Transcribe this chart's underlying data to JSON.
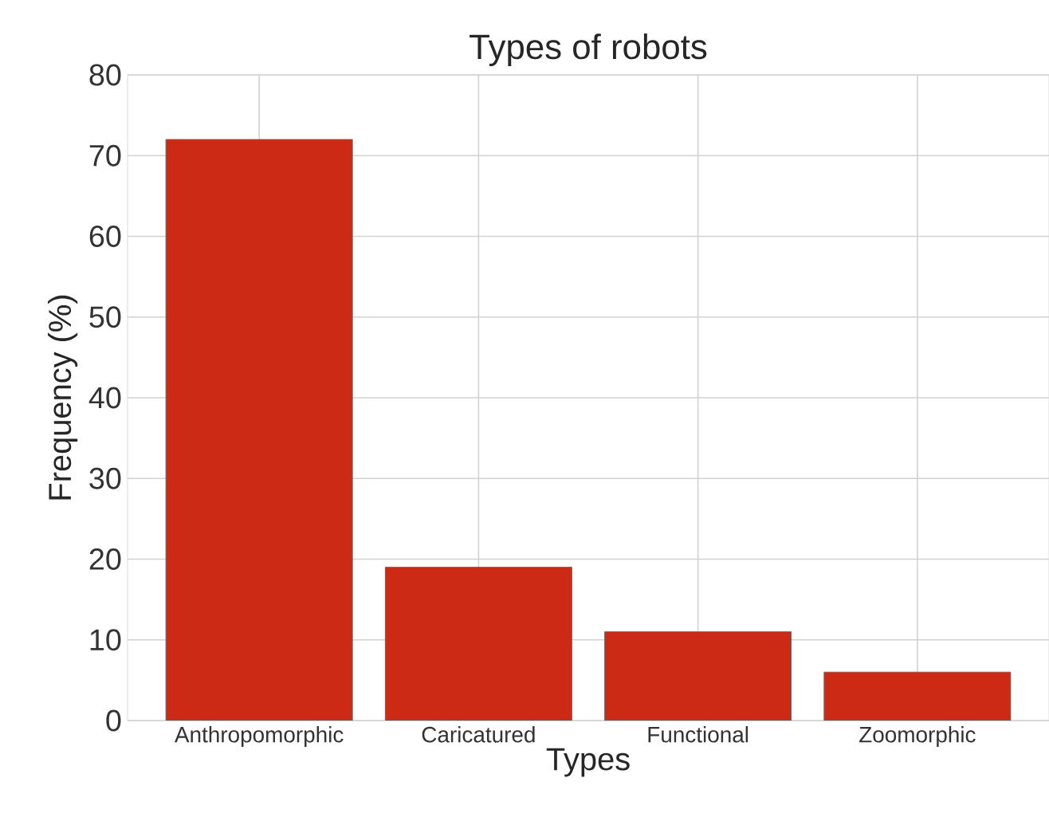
{
  "chart_data": {
    "type": "bar",
    "title": "Types of robots",
    "xlabel": "Types",
    "ylabel": "Frequency (%)",
    "categories": [
      "Anthropomorphic",
      "Caricatured",
      "Functional",
      "Zoomorphic"
    ],
    "values": [
      72,
      19,
      11,
      6
    ],
    "color": "#cc2a14",
    "ylim": [
      0,
      80
    ],
    "yticks": [
      0,
      10,
      20,
      30,
      40,
      50,
      60,
      70,
      80
    ],
    "grid": true
  }
}
